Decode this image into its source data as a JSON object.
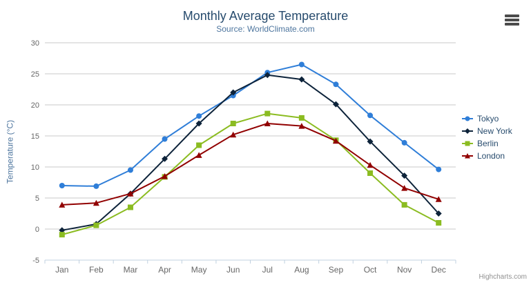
{
  "credit": "Highcharts.com",
  "colors": {
    "title": "#274b6d",
    "subtitle": "#4d759e",
    "legend": "#274b6d",
    "axislabel": "#666666",
    "grid": "#c9c9c9",
    "axisline": "#c0d0e0",
    "credit": "#909090",
    "menu": "#4b4b4b"
  },
  "chart_data": {
    "type": "line",
    "title": "Monthly Average Temperature",
    "subtitle": "Source: WorldClimate.com",
    "xlabel": "",
    "ylabel": "Temperature (°C)",
    "categories": [
      "Jan",
      "Feb",
      "Mar",
      "Apr",
      "May",
      "Jun",
      "Jul",
      "Aug",
      "Sep",
      "Oct",
      "Nov",
      "Dec"
    ],
    "ylim": [
      -5,
      30
    ],
    "ytick_step": 5,
    "yticks": [
      -5,
      0,
      5,
      10,
      15,
      20,
      25,
      30
    ],
    "grid": true,
    "legend_position": "right",
    "series": [
      {
        "name": "Tokyo",
        "color": "#2f7ed8",
        "marker": "circle",
        "values": [
          7.0,
          6.9,
          9.5,
          14.5,
          18.2,
          21.5,
          25.2,
          26.5,
          23.3,
          18.3,
          13.9,
          9.6
        ]
      },
      {
        "name": "New York",
        "color": "#0d233a",
        "marker": "diamond",
        "values": [
          -0.2,
          0.8,
          5.7,
          11.3,
          17.0,
          22.0,
          24.8,
          24.1,
          20.1,
          14.1,
          8.6,
          2.5
        ]
      },
      {
        "name": "Berlin",
        "color": "#8bbc21",
        "marker": "square",
        "values": [
          -0.9,
          0.6,
          3.5,
          8.4,
          13.5,
          17.0,
          18.6,
          17.9,
          14.3,
          9.0,
          3.9,
          1.0
        ]
      },
      {
        "name": "London",
        "color": "#910000",
        "marker": "triangle",
        "values": [
          3.9,
          4.2,
          5.7,
          8.5,
          11.9,
          15.2,
          17.0,
          16.6,
          14.2,
          10.3,
          6.6,
          4.8
        ]
      }
    ]
  }
}
